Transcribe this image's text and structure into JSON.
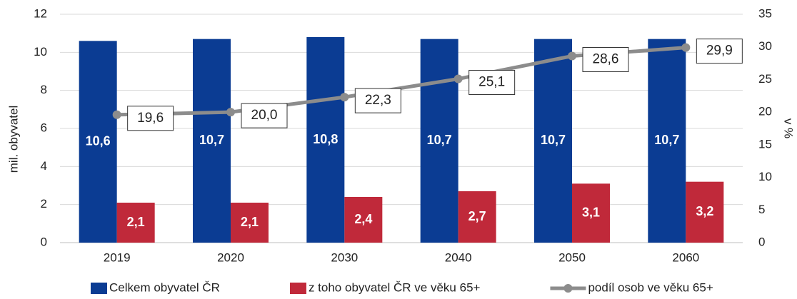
{
  "chart_data": {
    "type": "bar",
    "categories": [
      "2019",
      "2020",
      "2030",
      "2040",
      "2050",
      "2060"
    ],
    "series": [
      {
        "name": "Celkem obyvatel ČR",
        "type": "bar",
        "color": "#0b3c93",
        "values": [
          10.6,
          10.7,
          10.8,
          10.7,
          10.7,
          10.7
        ],
        "value_labels": [
          "10,6",
          "10,7",
          "10,8",
          "10,7",
          "10,7",
          "10,7"
        ]
      },
      {
        "name": "z toho obyvatel ČR ve věku 65+",
        "type": "bar",
        "color": "#c0293a",
        "values": [
          2.1,
          2.1,
          2.4,
          2.7,
          3.1,
          3.2
        ],
        "value_labels": [
          "2,1",
          "2,1",
          "2,4",
          "2,7",
          "3,1",
          "3,2"
        ]
      },
      {
        "name": "podíl osob ve věku 65+",
        "type": "line",
        "axis": "y2",
        "color": "#8c8c8c",
        "values": [
          19.6,
          20.0,
          22.3,
          25.1,
          28.6,
          29.9
        ],
        "value_labels": [
          "19,6",
          "20,0",
          "22,3",
          "25,1",
          "28,6",
          "29,9"
        ]
      }
    ],
    "y_label": "mil. obyvatel",
    "y2_label": "v %",
    "ylim": [
      0,
      12
    ],
    "yticks": [
      0,
      2,
      4,
      6,
      8,
      10,
      12
    ],
    "y2lim": [
      0,
      35
    ],
    "y2ticks": [
      0,
      5,
      10,
      15,
      20,
      25,
      30,
      35
    ],
    "grid": true,
    "legend": "bottom"
  }
}
